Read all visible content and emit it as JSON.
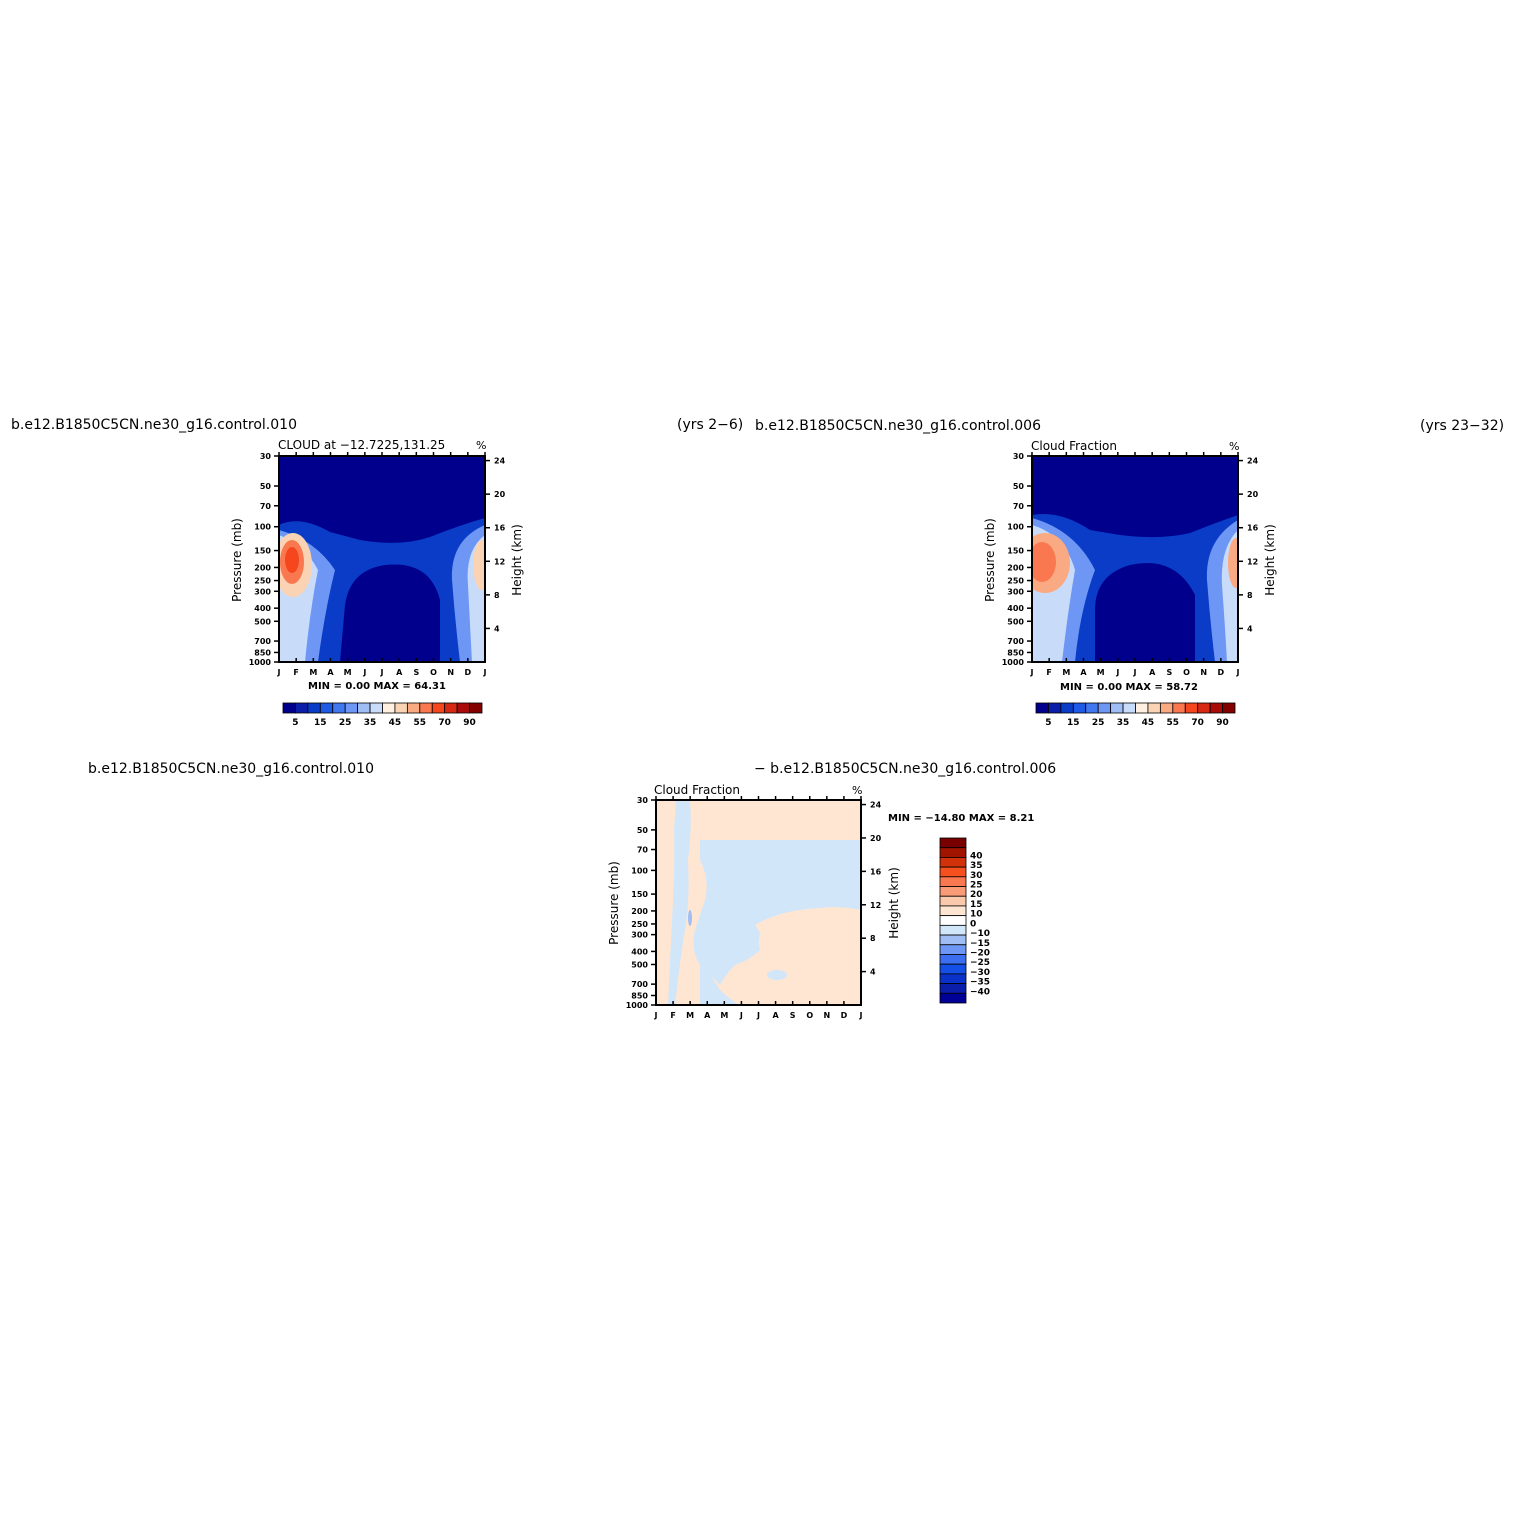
{
  "headers": {
    "top_left_case": "b.e12.B1850C5CN.ne30_g16.control.010",
    "top_left_years": "(yrs 2−6)",
    "top_right_case": "b.e12.B1850C5CN.ne30_g16.control.006",
    "top_right_years": "(yrs 23−32)",
    "bottom_left_case": "b.e12.B1850C5CN.ne30_g16.control.010",
    "bottom_right_case": "−  b.e12.B1850C5CN.ne30_g16.control.006"
  },
  "colors": {
    "abs_levels": [
      "#00008c",
      "#0a1eaa",
      "#0a3cc8",
      "#1e5ae6",
      "#4178f0",
      "#6e96f5",
      "#a0bef5",
      "#c8dcfa",
      "#fff0e1",
      "#fad2b4",
      "#faaa82",
      "#fa7850",
      "#f5461e",
      "#d72814",
      "#aa0a0a",
      "#820000"
    ],
    "diff_levels": [
      "#000096",
      "#0a1eaa",
      "#0a32c8",
      "#1450e6",
      "#3c6ef0",
      "#6e96f5",
      "#a0bef5",
      "#d2e6fa",
      "#ffffff",
      "#ffe6d2",
      "#fac8aa",
      "#fa9b78",
      "#fa7850",
      "#f5501e",
      "#d2320a",
      "#a01400",
      "#780000"
    ]
  },
  "chart_data": [
    {
      "id": "panel-1",
      "type": "heatmap",
      "title": "CLOUD  at  −12.7225,131.25",
      "units": "%",
      "ylabel": "Pressure  (mb)",
      "ylabel_right": "Height  (km)",
      "x_ticks": [
        "J",
        "F",
        "M",
        "A",
        "M",
        "J",
        "J",
        "A",
        "S",
        "O",
        "N",
        "D",
        "J"
      ],
      "y_ticks": [
        "30",
        "50",
        "70",
        "100",
        "150",
        "200",
        "250",
        "300",
        "400",
        "500",
        "700",
        "850",
        "1000"
      ],
      "y_ticks_right": [
        "24",
        "20",
        "16",
        "12",
        "8",
        "4"
      ],
      "stats": "MIN =    0.00  MAX =   64.31",
      "colorbar_labels": [
        "5",
        "15",
        "25",
        "35",
        "45",
        "55",
        "70",
        "90"
      ]
    },
    {
      "id": "panel-2",
      "type": "heatmap",
      "title": "Cloud  Fraction",
      "units": "%",
      "ylabel": "Pressure  (mb)",
      "ylabel_right": "Height  (km)",
      "x_ticks": [
        "J",
        "F",
        "M",
        "A",
        "M",
        "J",
        "J",
        "A",
        "S",
        "O",
        "N",
        "D",
        "J"
      ],
      "y_ticks": [
        "30",
        "50",
        "70",
        "100",
        "150",
        "200",
        "250",
        "300",
        "400",
        "500",
        "700",
        "850",
        "1000"
      ],
      "y_ticks_right": [
        "24",
        "20",
        "16",
        "12",
        "8",
        "4"
      ],
      "stats": "MIN =    0.00  MAX =   58.72",
      "colorbar_labels": [
        "5",
        "15",
        "25",
        "35",
        "45",
        "55",
        "70",
        "90"
      ]
    },
    {
      "id": "panel-3",
      "type": "heatmap",
      "title": "Cloud  Fraction",
      "units": "%",
      "ylabel": "Pressure  (mb)",
      "ylabel_right": "Height  (km)",
      "x_ticks": [
        "J",
        "F",
        "M",
        "A",
        "M",
        "J",
        "J",
        "A",
        "S",
        "O",
        "N",
        "D",
        "J"
      ],
      "y_ticks": [
        "30",
        "50",
        "70",
        "100",
        "150",
        "200",
        "250",
        "300",
        "400",
        "500",
        "700",
        "850",
        "1000"
      ],
      "y_ticks_right": [
        "24",
        "20",
        "16",
        "12",
        "8",
        "4"
      ],
      "stats": "MIN = −14.80  MAX =     8.21",
      "colorbar_labels": [
        "40",
        "35",
        "30",
        "25",
        "20",
        "15",
        "10",
        "0",
        "−10",
        "−15",
        "−20",
        "−25",
        "−30",
        "−35",
        "−40"
      ]
    }
  ]
}
